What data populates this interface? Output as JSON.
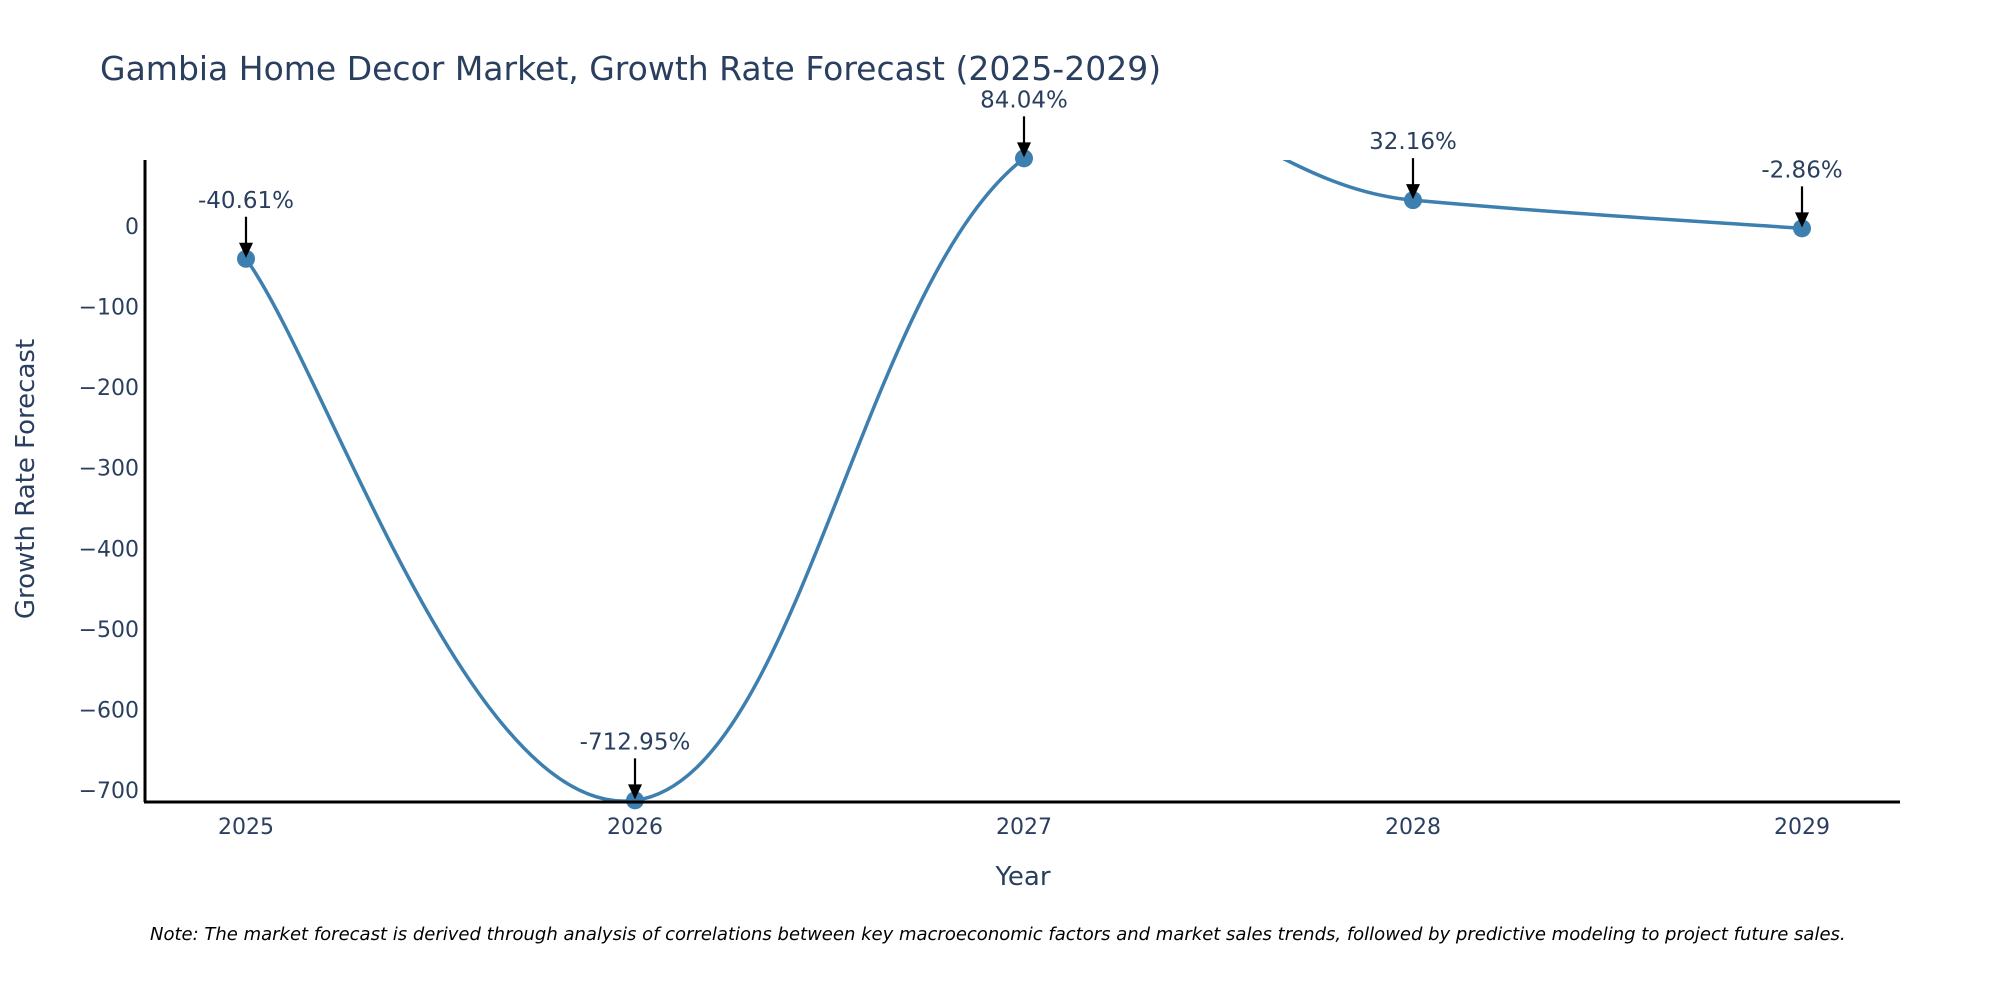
{
  "chart_data": {
    "type": "line",
    "title": "Gambia Home Decor Market, Growth Rate Forecast (2025-2029)",
    "xlabel": "Year",
    "ylabel": "Growth Rate Forecast",
    "categories": [
      "2025",
      "2026",
      "2027",
      "2028",
      "2029"
    ],
    "values": [
      -40.61,
      -712.95,
      84.04,
      32.16,
      -2.86
    ],
    "data_labels": [
      "-40.61%",
      "-712.95%",
      "84.04%",
      "32.16%",
      "-2.86%"
    ],
    "ylim": [
      -715,
      82
    ],
    "y_ticks": [
      0,
      -100,
      -200,
      -300,
      -400,
      -500,
      -600,
      -700
    ],
    "y_tick_labels": [
      "0",
      "−100",
      "−200",
      "−300",
      "−400",
      "−500",
      "−600",
      "−700"
    ],
    "grid": false,
    "line_color": "#3d7fae",
    "marker_color": "#3d7fae",
    "arrow_color": "#000000",
    "note": "Note: The market forecast is derived through analysis of correlations between key macroeconomic factors and market sales trends, followed by predictive modeling to project future sales."
  }
}
